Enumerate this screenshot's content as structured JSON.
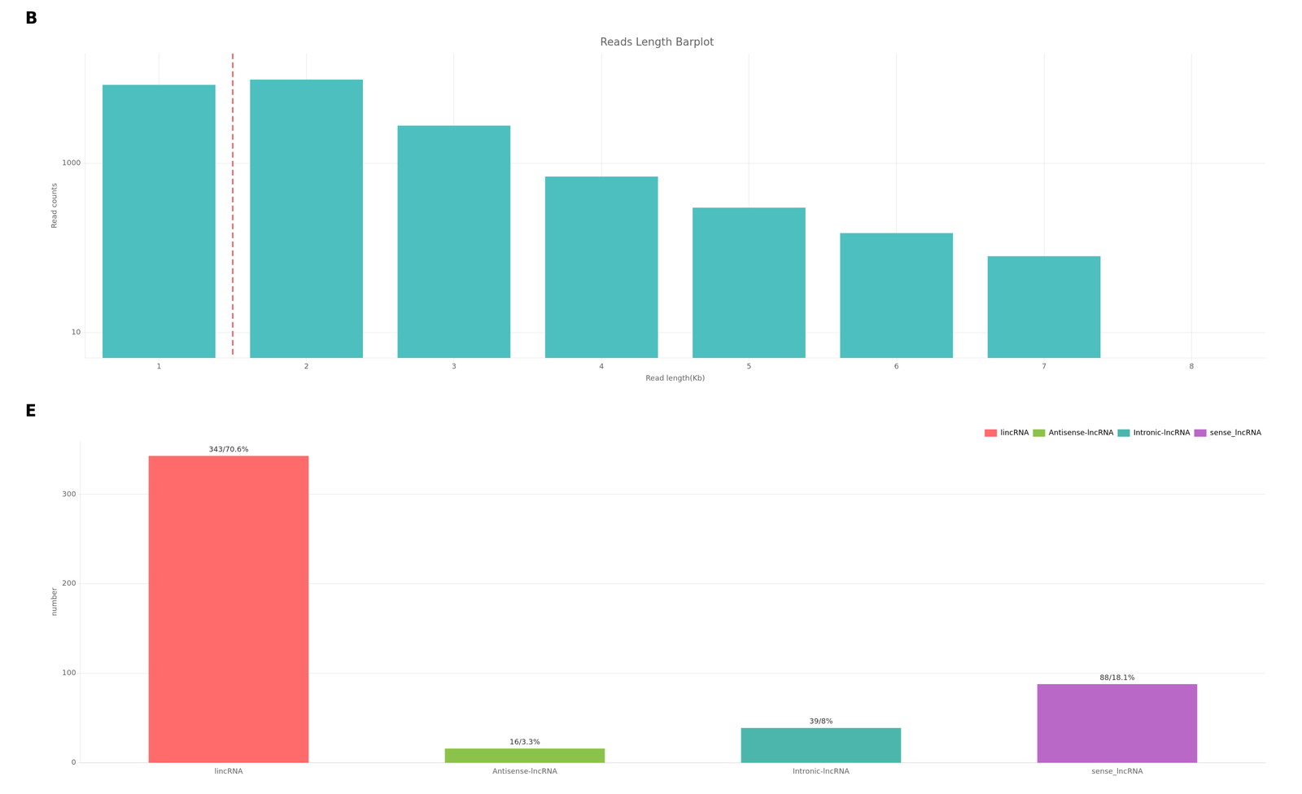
{
  "chart_data": [
    {
      "type": "bar",
      "title": "Reads Length Barplot",
      "annotations": [
        "B"
      ],
      "xlabel": "Read length(Kb)",
      "ylabel": "Read counts",
      "x": [
        1,
        2,
        3,
        4,
        5,
        6,
        7
      ],
      "values": [
        8500,
        9800,
        2800,
        700,
        300,
        150,
        80
      ],
      "color": "#4DBFBF",
      "xlim": [
        0.5,
        8.5
      ],
      "xticks": [
        1,
        2,
        3,
        4,
        5,
        6,
        7,
        8
      ],
      "ylim": [
        5,
        20000
      ],
      "yticks": [
        10,
        1000
      ],
      "log": "y",
      "grid": true,
      "reference_lines": [
        {
          "x": 1.5,
          "color": "#FF4444",
          "line_style": "dashed"
        }
      ]
    },
    {
      "type": "bar",
      "annotations": [
        "E"
      ],
      "ylabel": "number",
      "categories": [
        "lincRNA",
        "Antisense-lncRNA",
        "Intronic-lncRNA",
        "sense_lncRNA"
      ],
      "values": [
        343,
        16,
        39,
        88
      ],
      "value_labels": [
        "343/70.6%",
        "16/3.3%",
        "39/8%",
        "88/18.1%"
      ],
      "data_labels": true,
      "colors": [
        "#FF6B6B",
        "#8BC34A",
        "#4DB6AC",
        "#BA68C8"
      ],
      "ylim": [
        0,
        360
      ],
      "yticks": [
        0,
        100,
        200,
        300
      ],
      "grid": "y",
      "legend": "upper right"
    }
  ]
}
